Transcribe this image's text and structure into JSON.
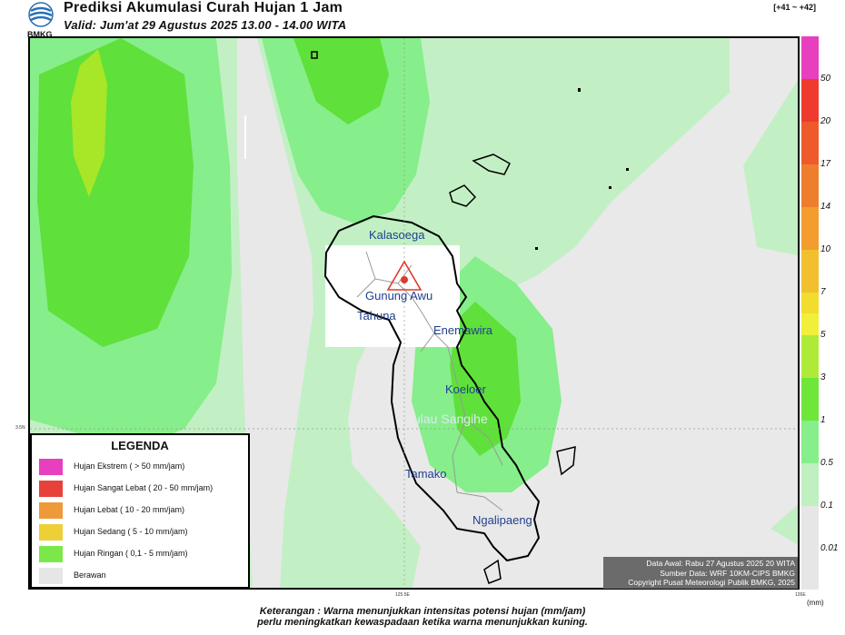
{
  "header": {
    "logo_text": "BMKG",
    "title": "Prediksi Akumulasi Curah Hujan 1 Jam",
    "subtitle": "Valid: Jum'at 29 Agustus 2025 13.00 - 14.00 WITA",
    "run_code": "[+41 ~ +42]"
  },
  "map": {
    "places": [
      "Kalasoega",
      "Gunung Awu",
      "Tahuna",
      "Enemawira",
      "Koeloer",
      "ulau Sangihe",
      "Tamako",
      "Ngalipaeng"
    ],
    "volcano_icon": "volcano-triangle-icon",
    "axis_ticks": {
      "lat": "3.5N",
      "lon1": "125.5E",
      "lon2": "126E"
    }
  },
  "legend": {
    "title": "LEGENDA",
    "items": [
      {
        "label": "Hujan Ekstrem ( > 50 mm/jam)",
        "color": "#e83fbf"
      },
      {
        "label": "Hujan Sangat Lebat ( 20 - 50 mm/jam)",
        "color": "#e8403a"
      },
      {
        "label": "Hujan Lebat ( 10 - 20 mm/jam)",
        "color": "#ef9a3a"
      },
      {
        "label": "Hujan Sedang ( 5 - 10 mm/jam)",
        "color": "#ecd035"
      },
      {
        "label": "Hujan Ringan ( 0,1 - 5 mm/jam)",
        "color": "#7be84a"
      },
      {
        "label": "Berawan",
        "color": "#e6e6e6"
      }
    ]
  },
  "data_info": {
    "line1": "Data Awal: Rabu 27 Agustus 2025 20 WITA",
    "line2": "Sumber Data: WRF 10KM-CIPS BMKG",
    "line3": "Copyright Pusat Meteorologi Publik BMKG, 2025"
  },
  "colorbar": {
    "unit": "(mm)",
    "labels": [
      "50",
      "20",
      "17",
      "14",
      "10",
      "7",
      "5",
      "3",
      "1",
      "0.5",
      "0.1",
      "0.01"
    ],
    "colors": [
      "#e83fbf",
      "#ee3b2e",
      "#ee5a2b",
      "#ef7e2c",
      "#f29d2e",
      "#f2c02e",
      "#f2dc2e",
      "#f0f03a",
      "#b0ea38",
      "#6ee63a",
      "#86ee8a",
      "#bff0c0",
      "#e6e6e6"
    ]
  },
  "footer": {
    "line1": "Keterangan : Warna menunjukkan intensitas potensi hujan (mm/jam)",
    "line2": "perlu meningkatkan kewaspadaan ketika warna menunjukkan kuning."
  }
}
